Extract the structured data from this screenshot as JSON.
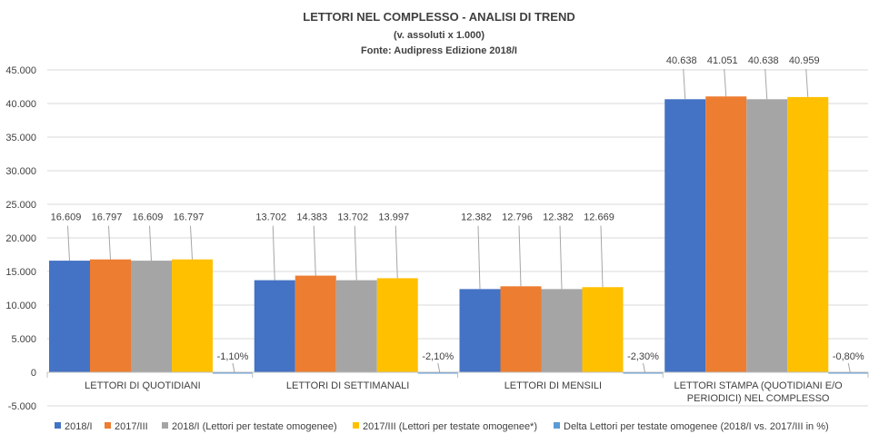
{
  "chart_data": {
    "type": "bar",
    "title": "LETTORI NEL COMPLESSO - ANALISI DI TREND",
    "subtitle": "(v. assoluti x 1.000)",
    "source": "Fonte: Audipress Edizione 2018/I",
    "categories": [
      [
        "LETTORI DI QUOTIDIANI"
      ],
      [
        "LETTORI DI SETTIMANALI"
      ],
      [
        "LETTORI DI MENSILI"
      ],
      [
        "LETTORI STAMPA (QUOTIDIANI E/O",
        "PERIODICI) NEL COMPLESSO"
      ]
    ],
    "series": [
      {
        "name": "2018/I",
        "color": "#4472C4",
        "values": [
          16609,
          13702,
          12382,
          40638
        ],
        "labels": [
          "16.609",
          "13.702",
          "12.382",
          "40.638"
        ]
      },
      {
        "name": "2017/III",
        "color": "#ED7D31",
        "values": [
          16797,
          14383,
          12796,
          41051
        ],
        "labels": [
          "16.797",
          "14.383",
          "12.796",
          "41.051"
        ]
      },
      {
        "name": "2018/I (Lettori per testate omogenee)",
        "color": "#A5A5A5",
        "values": [
          16609,
          13702,
          12382,
          40638
        ],
        "labels": [
          "16.609",
          "13.702",
          "12.382",
          "40.638"
        ]
      },
      {
        "name": "2017/III (Lettori per testate omogenee*)",
        "color": "#FFC000",
        "values": [
          16797,
          13997,
          12669,
          40959
        ],
        "labels": [
          "16.797",
          "13.997",
          "12.669",
          "40.959"
        ]
      },
      {
        "name": "Delta Lettori per testate omogenee (2018/I vs. 2017/III in %)",
        "color": "#5B9BD5",
        "values": [
          -1.1,
          -2.1,
          -2.3,
          -0.8
        ],
        "labels": [
          "-1,10%",
          "-2,10%",
          "-2,30%",
          "-0,80%"
        ]
      }
    ],
    "ylim": [
      -5000,
      45000
    ],
    "yticks": [
      -5000,
      0,
      5000,
      10000,
      15000,
      20000,
      25000,
      30000,
      35000,
      40000,
      45000
    ],
    "ytick_labels": [
      "-5.000",
      "0",
      "5.000",
      "10.000",
      "15.000",
      "20.000",
      "25.000",
      "30.000",
      "35.000",
      "40.000",
      "45.000"
    ],
    "grid": true,
    "legend": "bottom"
  }
}
